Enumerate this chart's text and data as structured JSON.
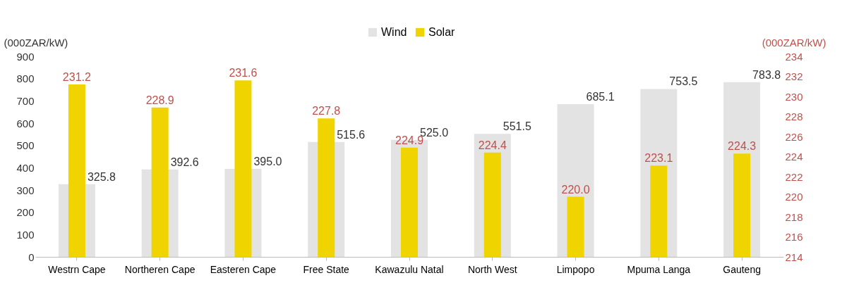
{
  "chart_data": {
    "type": "bar",
    "ylabel": "(000ZAR/kW)",
    "y2label": "(000ZAR/kW)",
    "categories": [
      "Westrn Cape",
      "Northeren Cape",
      "Easteren Cape",
      "Free State",
      "Kawazulu Natal",
      "North West",
      "Limpopo",
      "Mpuma Langa",
      "Gauteng"
    ],
    "series": [
      {
        "name": "Wind",
        "color": "#e3e3e3",
        "values": [
          325.8,
          392.6,
          395,
          515.6,
          525,
          551.5,
          685.1,
          753.5,
          783.8
        ],
        "value_labels": [
          "325.8",
          "392.6",
          "395.0",
          "515.6",
          "525.0",
          "551.5",
          "685.1",
          "753.5",
          "783.8"
        ]
      },
      {
        "name": "Solar",
        "color": "#f0d400",
        "axis": "y2",
        "values": [
          231.2,
          228.9,
          231.6,
          227.8,
          224.9,
          224.4,
          220,
          223.1,
          224.3
        ],
        "value_labels": [
          "231.2",
          "228.9",
          "231.6",
          "227.8",
          "224.9",
          "224.4",
          "220.0",
          "223.1",
          "224.3"
        ]
      }
    ],
    "ylim": [
      0,
      900
    ],
    "yticks": [
      0,
      100,
      200,
      300,
      400,
      500,
      600,
      700,
      800,
      900
    ],
    "y2lim": [
      214,
      234
    ],
    "y2ticks": [
      214,
      216,
      218,
      220,
      222,
      224,
      226,
      228,
      230,
      232,
      234
    ],
    "legend": "top",
    "grid": false
  }
}
